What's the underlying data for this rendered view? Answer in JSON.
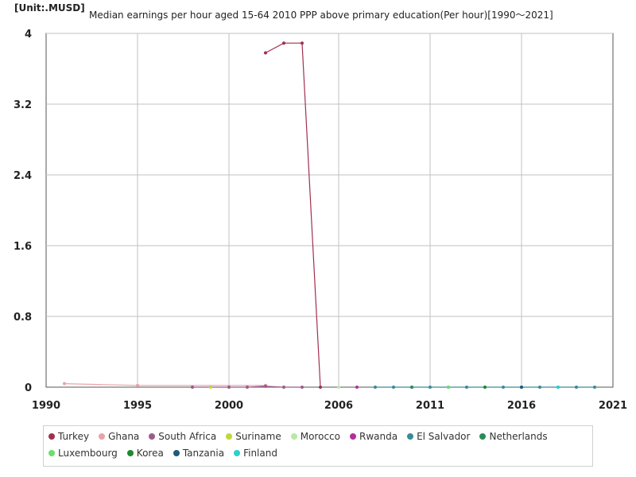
{
  "header": {
    "unit": "[Unit:.MUSD]",
    "title": "Median earnings per hour aged 15-64 2010 PPP above primary education(Per hour)[1990～2021]"
  },
  "chart_data": {
    "type": "line",
    "xlim": [
      1990,
      2021
    ],
    "ylim": [
      0,
      4
    ],
    "x_ticks": [
      1990,
      1995,
      2000,
      2006,
      2011,
      2016,
      2021
    ],
    "y_ticks": [
      0,
      0.8,
      1.6,
      2.4,
      3.2,
      4
    ],
    "y_tick_labels": [
      "0",
      "0.8",
      "1.6",
      "2.4",
      "3.2",
      "4"
    ],
    "grid": true,
    "legend_position": "bottom",
    "series": [
      {
        "name": "Turkey",
        "color": "#a0304e",
        "points": [
          [
            2002,
            3.78
          ],
          [
            2003,
            3.89
          ],
          [
            2004,
            3.89
          ],
          [
            2005,
            0.0
          ]
        ]
      },
      {
        "name": "Ghana",
        "color": "#e8a3a8",
        "points": [
          [
            1991,
            0.04
          ],
          [
            1995,
            0.02
          ],
          [
            2002,
            0.02
          ]
        ]
      },
      {
        "name": "South Africa",
        "color": "#9b5b8c",
        "points": [
          [
            1998,
            0.0
          ],
          [
            2000,
            0.0
          ],
          [
            2001,
            0.0
          ],
          [
            2002,
            0.01
          ],
          [
            2003,
            0.0
          ],
          [
            2004,
            0.0
          ]
        ]
      },
      {
        "name": "Suriname",
        "color": "#bfd83a",
        "points": [
          [
            1999,
            0.0
          ]
        ]
      },
      {
        "name": "Morocco",
        "color": "#b8e8a8",
        "points": [
          [
            2006,
            0.0
          ]
        ]
      },
      {
        "name": "Rwanda",
        "color": "#b32f9a",
        "points": [
          [
            2007,
            0.0
          ]
        ]
      },
      {
        "name": "El Salvador",
        "color": "#3a8a9a",
        "points": [
          [
            2008,
            0.0
          ],
          [
            2009,
            0.0
          ],
          [
            2010,
            0.0
          ],
          [
            2011,
            0.0
          ],
          [
            2012,
            0.0
          ],
          [
            2013,
            0.0
          ],
          [
            2014,
            0.0
          ],
          [
            2015,
            0.0
          ],
          [
            2016,
            0.0
          ],
          [
            2017,
            0.0
          ],
          [
            2018,
            0.0
          ],
          [
            2019,
            0.0
          ],
          [
            2020,
            0.0
          ]
        ]
      },
      {
        "name": "Netherlands",
        "color": "#2e8a5a",
        "points": [
          [
            2010,
            0.0
          ]
        ]
      },
      {
        "name": "Luxembourg",
        "color": "#6ae06a",
        "points": [
          [
            2012,
            0.0
          ]
        ]
      },
      {
        "name": "Korea",
        "color": "#1e8a2e",
        "points": [
          [
            2014,
            0.0
          ]
        ]
      },
      {
        "name": "Tanzania",
        "color": "#1e5a7a",
        "points": [
          [
            2016,
            0.0
          ]
        ]
      },
      {
        "name": "Finland",
        "color": "#2ad0d0",
        "points": [
          [
            2018,
            0.0
          ]
        ]
      }
    ]
  },
  "colors": {
    "grid": "#c0c0c0",
    "axis": "#555555"
  }
}
